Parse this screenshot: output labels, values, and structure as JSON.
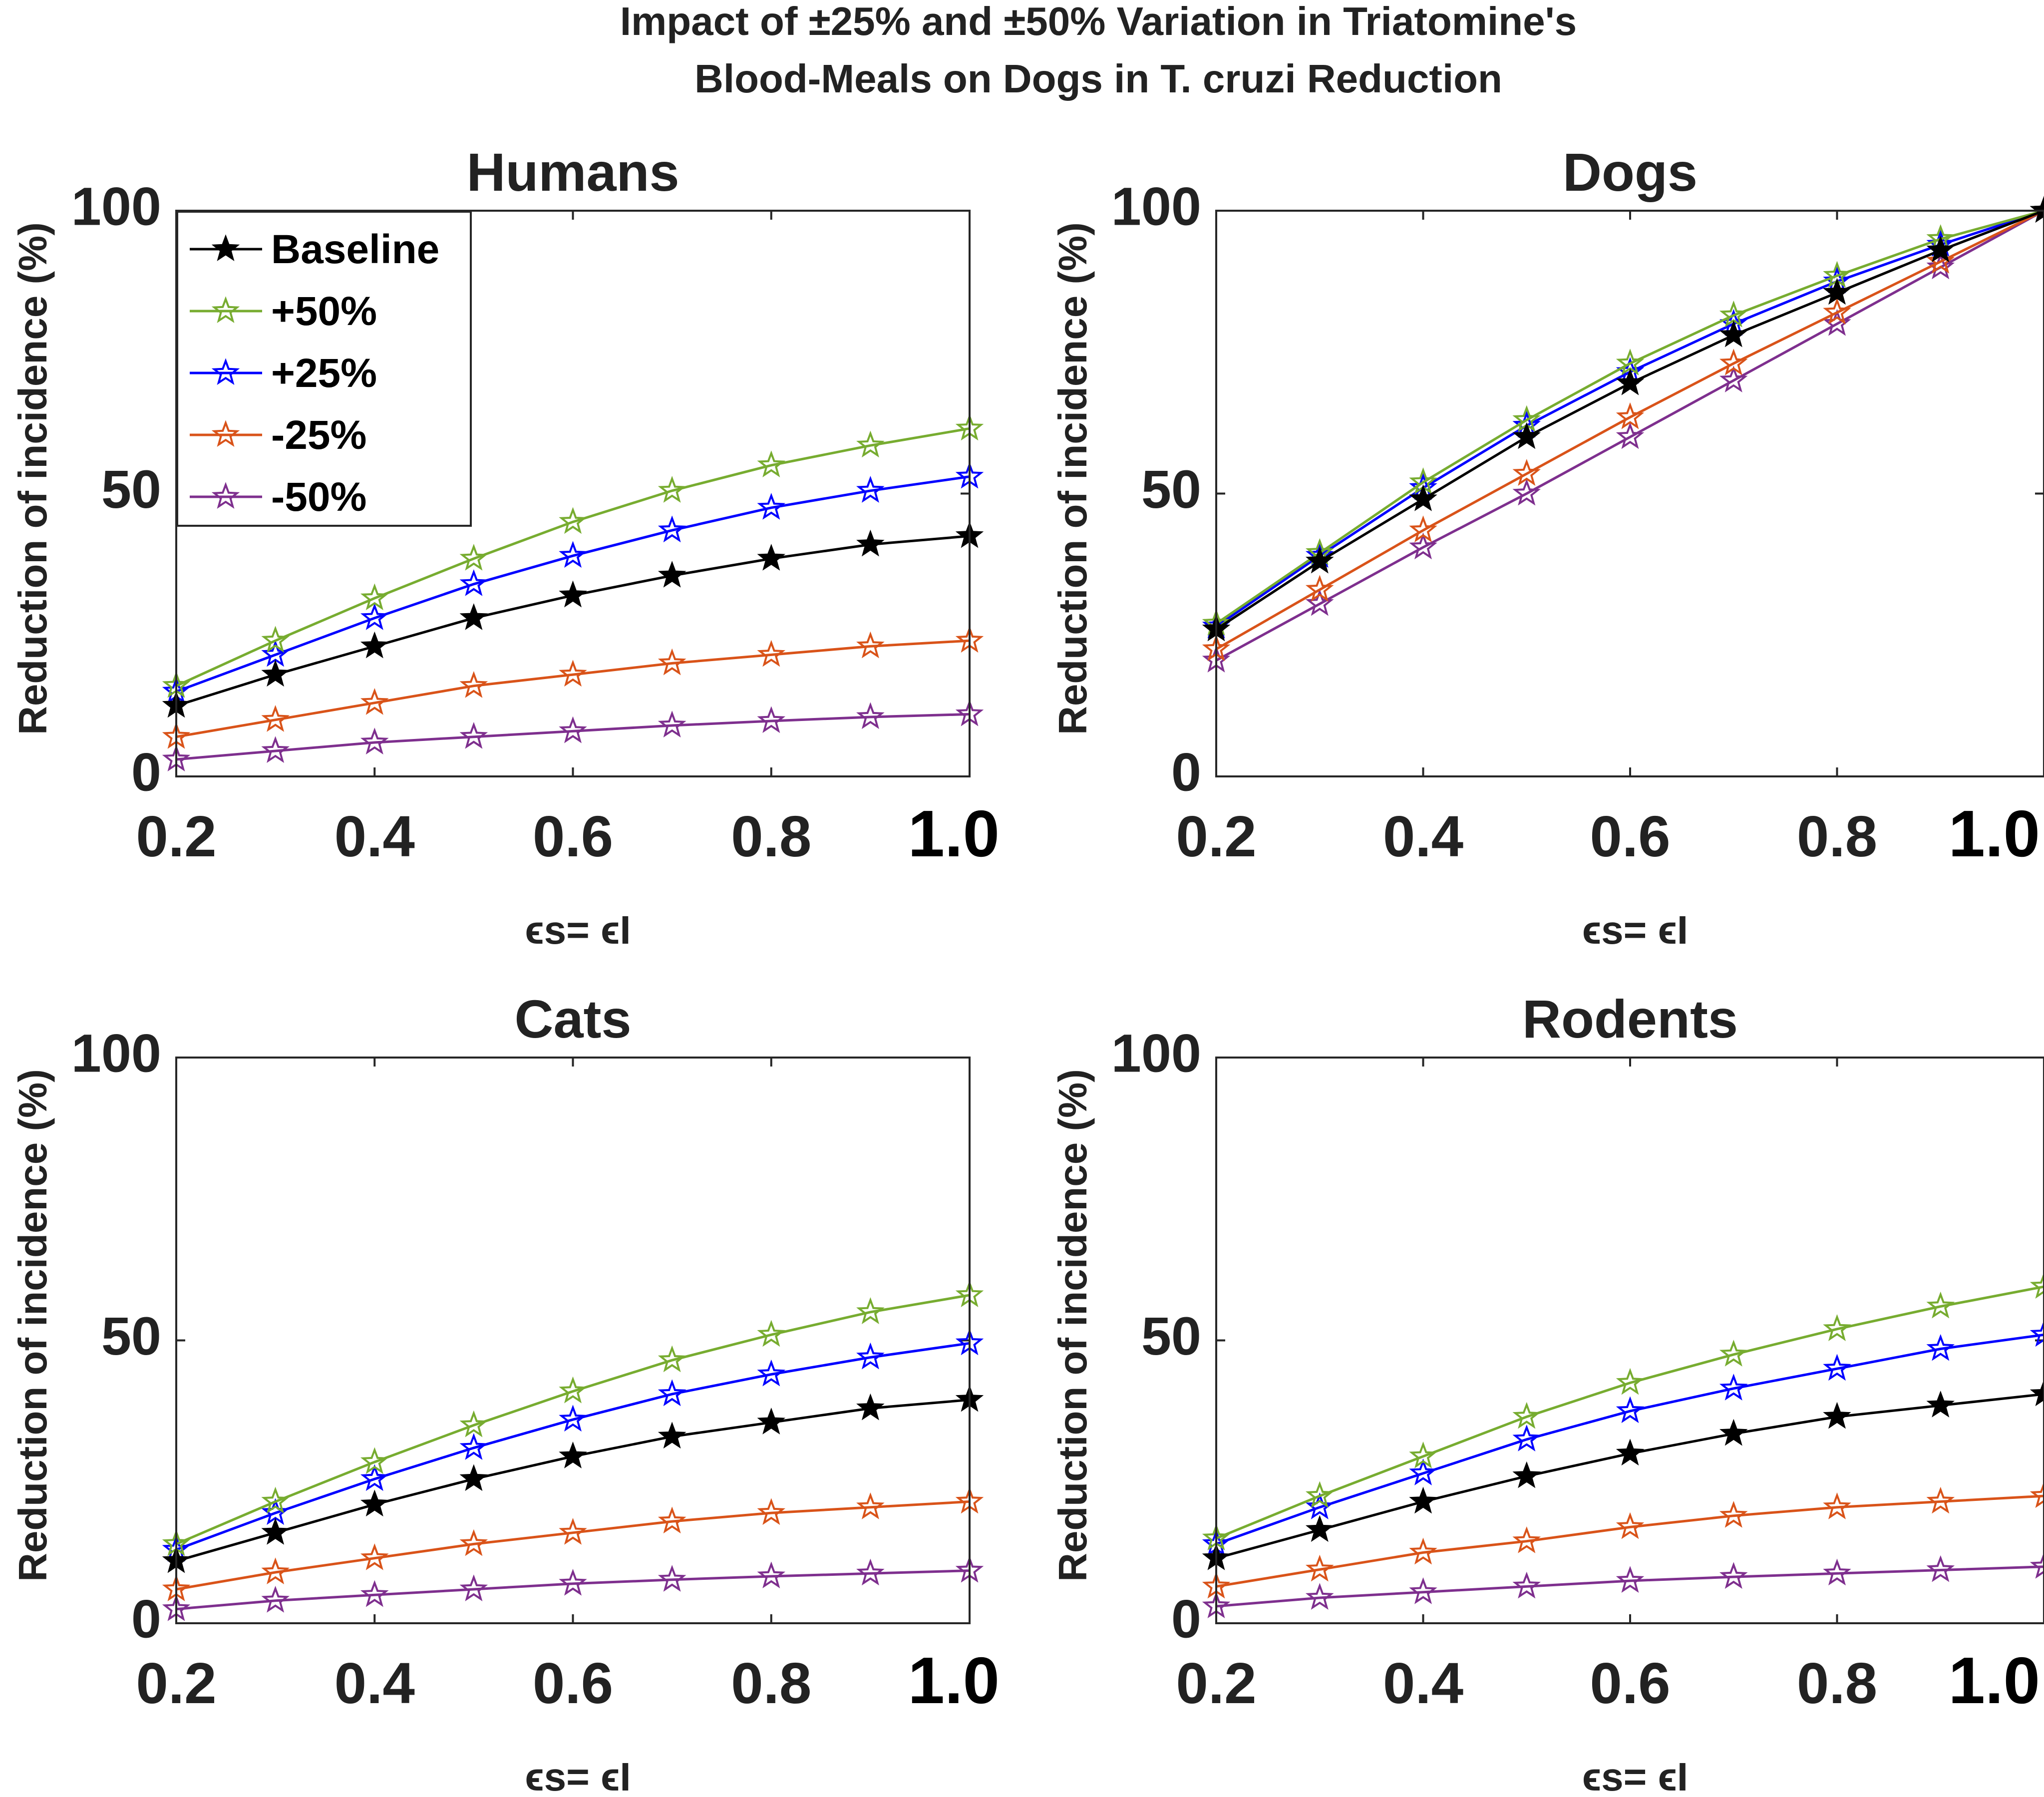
{
  "figure_title": [
    "Impact of ±25% and ±50% Variation in Triatomine's",
    "Blood-Meals on Dogs in T. cruzi Reduction"
  ],
  "colors": {
    "Baseline": "#000000",
    "+50%": "#77AC30",
    "+25%": "#0000FF",
    "-25%": "#D95319",
    "-50%": "#7E2F8E"
  },
  "legend": {
    "placement": "top-left of Humans panel",
    "entries": [
      "Baseline",
      "+50%",
      "+25%",
      "-25%",
      "-50%"
    ]
  },
  "chart_data": [
    {
      "type": "line",
      "title": "Humans",
      "xlabel": "ϵs= ϵI",
      "ylabel": "Reduction of incidence (%)",
      "x": [
        0.2,
        0.3,
        0.4,
        0.5,
        0.6,
        0.7,
        0.8,
        0.9,
        1.0
      ],
      "xticks": [
        "0.2",
        "0.4",
        "0.6",
        "0.8",
        "1.0"
      ],
      "yticks": [
        "0",
        "50",
        "100"
      ],
      "xlim": [
        0.2,
        1.0
      ],
      "ylim": [
        0,
        100
      ],
      "series": [
        {
          "name": "Baseline",
          "values": [
            12.5,
            18,
            23,
            28,
            32,
            35.5,
            38.5,
            41,
            42.5
          ]
        },
        {
          "name": "+50%",
          "values": [
            16,
            24,
            31.5,
            38.5,
            45,
            50.5,
            55,
            58.5,
            61.5
          ]
        },
        {
          "name": "+25%",
          "values": [
            15,
            21.5,
            28,
            34,
            39,
            43.5,
            47.5,
            50.5,
            53
          ]
        },
        {
          "name": "-25%",
          "values": [
            7,
            10,
            13,
            16,
            18,
            20,
            21.5,
            23,
            24
          ]
        },
        {
          "name": "-50%",
          "values": [
            3,
            4.5,
            6,
            7,
            8,
            9,
            9.8,
            10.5,
            11
          ]
        }
      ]
    },
    {
      "type": "line",
      "title": "Dogs",
      "xlabel": "ϵs= ϵI",
      "ylabel": "Reduction of incidence (%)",
      "x": [
        0.2,
        0.3,
        0.4,
        0.5,
        0.6,
        0.7,
        0.8,
        0.9,
        1.0
      ],
      "xticks": [
        "0.2",
        "0.4",
        "0.6",
        "0.8",
        "1.0"
      ],
      "yticks": [
        "0",
        "50",
        "100"
      ],
      "xlim": [
        0.2,
        1.0
      ],
      "ylim": [
        0,
        100
      ],
      "series": [
        {
          "name": "Baseline",
          "values": [
            26,
            38,
            49,
            60,
            69.5,
            78,
            85.5,
            93,
            100
          ]
        },
        {
          "name": "+50%",
          "values": [
            27,
            39.5,
            52,
            63,
            73,
            81.5,
            88.5,
            95,
            100
          ]
        },
        {
          "name": "+25%",
          "values": [
            26.5,
            39,
            51,
            62,
            71.5,
            80,
            87.5,
            94,
            100
          ]
        },
        {
          "name": "-25%",
          "values": [
            22.5,
            33,
            43.5,
            53.5,
            63.5,
            73,
            82,
            91,
            100
          ]
        },
        {
          "name": "-50%",
          "values": [
            20.5,
            30.5,
            40.5,
            50,
            60,
            70,
            80,
            90,
            100
          ]
        }
      ]
    },
    {
      "type": "line",
      "title": "Cats",
      "xlabel": "ϵs= ϵI",
      "ylabel": "Reduction of incidence (%)",
      "x": [
        0.2,
        0.3,
        0.4,
        0.5,
        0.6,
        0.7,
        0.8,
        0.9,
        1.0
      ],
      "xticks": [
        "0.2",
        "0.4",
        "0.6",
        "0.8",
        "1.0"
      ],
      "yticks": [
        "0",
        "50",
        "100"
      ],
      "xlim": [
        0.2,
        1.0
      ],
      "ylim": [
        0,
        100
      ],
      "series": [
        {
          "name": "Baseline",
          "values": [
            11,
            16,
            21,
            25.5,
            29.5,
            33,
            35.5,
            38,
            39.5
          ]
        },
        {
          "name": "+50%",
          "values": [
            14,
            21.5,
            28.5,
            35,
            41,
            46.5,
            51,
            55,
            58
          ]
        },
        {
          "name": "+25%",
          "values": [
            13,
            19.5,
            25.5,
            31,
            36,
            40.5,
            44,
            47,
            49.5
          ]
        },
        {
          "name": "-25%",
          "values": [
            6,
            9,
            11.5,
            14,
            16,
            18,
            19.5,
            20.5,
            21.5
          ]
        },
        {
          "name": "-50%",
          "values": [
            2.5,
            4,
            5,
            6,
            7,
            7.7,
            8.3,
            8.8,
            9.3
          ]
        }
      ]
    },
    {
      "type": "line",
      "title": "Rodents",
      "xlabel": "ϵs= ϵI",
      "ylabel": "Reduction of incidence (%)",
      "x": [
        0.2,
        0.3,
        0.4,
        0.5,
        0.6,
        0.7,
        0.8,
        0.9,
        1.0
      ],
      "xticks": [
        "0.2",
        "0.4",
        "0.6",
        "0.8",
        "1.0"
      ],
      "yticks": [
        "0",
        "50",
        "100"
      ],
      "xlim": [
        0.2,
        1.0
      ],
      "ylim": [
        0,
        100
      ],
      "series": [
        {
          "name": "Baseline",
          "values": [
            11.5,
            16.5,
            21.5,
            26,
            30,
            33.5,
            36.5,
            38.5,
            40.5
          ]
        },
        {
          "name": "+50%",
          "values": [
            15,
            22.5,
            29.5,
            36.5,
            42.5,
            47.5,
            52,
            56,
            59.5
          ]
        },
        {
          "name": "+25%",
          "values": [
            14,
            20.5,
            26.5,
            32.5,
            37.5,
            41.5,
            45,
            48.5,
            51
          ]
        },
        {
          "name": "-25%",
          "values": [
            6.5,
            9.5,
            12.5,
            14.5,
            17,
            19,
            20.5,
            21.5,
            22.5
          ]
        },
        {
          "name": "-50%",
          "values": [
            3,
            4.5,
            5.5,
            6.5,
            7.5,
            8.2,
            8.8,
            9.4,
            10
          ]
        }
      ]
    }
  ]
}
